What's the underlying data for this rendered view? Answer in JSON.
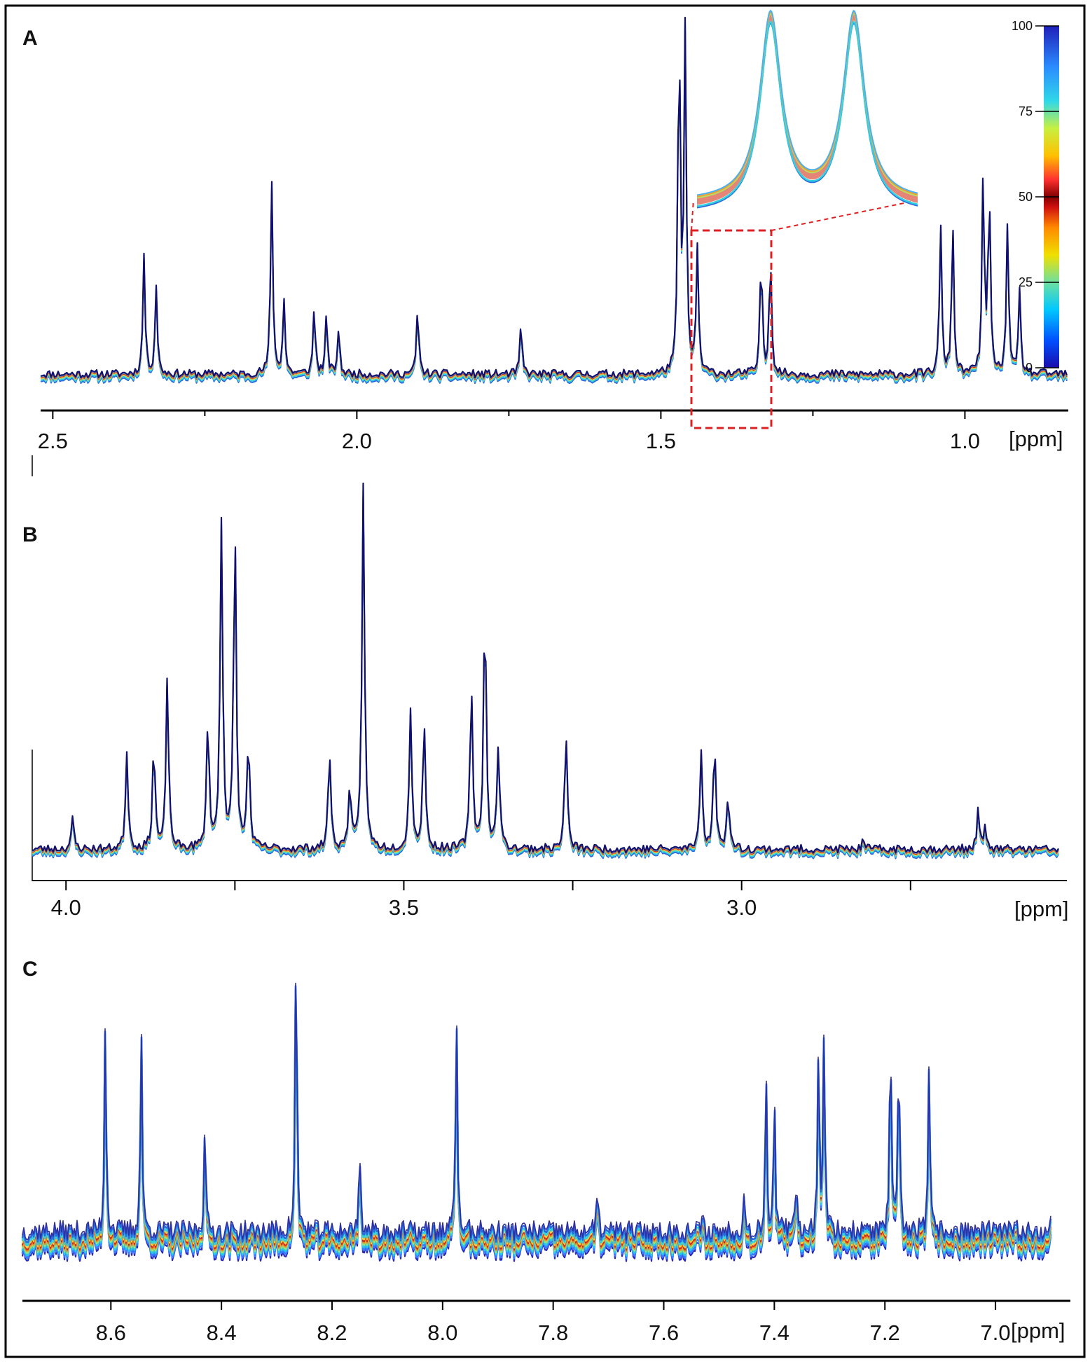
{
  "figure": {
    "panels": [
      "A",
      "B",
      "C"
    ],
    "colorbar": {
      "ticks": [
        0,
        25,
        50,
        75,
        100
      ],
      "tick_labels": [
        "0",
        "25",
        "50",
        "75",
        "100"
      ],
      "colors": [
        "#1a0dab",
        "#0050ff",
        "#00c8ff",
        "#6de0a0",
        "#f0e000",
        "#ff8a00",
        "#d01010",
        "#800000",
        "#ff3030",
        "#ffc000",
        "#c8f040",
        "#30d8e8",
        "#2a8cff",
        "#2020b8"
      ]
    },
    "zoom_box_color": "#e02020",
    "spectrum_line_color": "#10106e"
  },
  "chart_data": [
    {
      "type": "line",
      "panel": "A",
      "title": "",
      "xlabel": "[ppm]",
      "ylabel": "",
      "x_reversed": true,
      "xlim": [
        2.52,
        0.83
      ],
      "ylim": [
        0,
        100
      ],
      "x_ticks": [
        2.5,
        2.0,
        1.5,
        1.0
      ],
      "x_tick_labels": [
        "2.5",
        "2.0",
        "1.5",
        "1.0"
      ],
      "minor_ticks": [
        2.25,
        1.75,
        1.25
      ],
      "zoom_region_ppm": [
        1.38,
        1.25
      ],
      "inset": {
        "description": "zoom of doublet near 1.33 ppm",
        "peaks_ppm": [
          1.335,
          1.318
        ]
      },
      "series": [
        {
          "name": "spectra overlay (colour = sample index)",
          "baseline": 4,
          "peaks": [
            {
              "x": 2.35,
              "y": 36
            },
            {
              "x": 2.33,
              "y": 28
            },
            {
              "x": 2.14,
              "y": 56
            },
            {
              "x": 2.12,
              "y": 24
            },
            {
              "x": 2.07,
              "y": 22
            },
            {
              "x": 2.05,
              "y": 19
            },
            {
              "x": 2.03,
              "y": 16
            },
            {
              "x": 1.9,
              "y": 22
            },
            {
              "x": 1.73,
              "y": 17
            },
            {
              "x": 1.47,
              "y": 100
            },
            {
              "x": 1.46,
              "y": 100
            },
            {
              "x": 1.44,
              "y": 38
            },
            {
              "x": 1.335,
              "y": 37
            },
            {
              "x": 1.32,
              "y": 37
            },
            {
              "x": 1.04,
              "y": 44
            },
            {
              "x": 1.02,
              "y": 44
            },
            {
              "x": 0.97,
              "y": 57
            },
            {
              "x": 0.96,
              "y": 54
            },
            {
              "x": 0.93,
              "y": 45
            },
            {
              "x": 0.91,
              "y": 26
            }
          ]
        }
      ]
    },
    {
      "type": "line",
      "panel": "B",
      "title": "",
      "xlabel": "[ppm]",
      "ylabel": "",
      "x_reversed": true,
      "xlim": [
        4.05,
        2.53
      ],
      "ylim": [
        0,
        100
      ],
      "x_ticks": [
        4.0,
        3.5,
        3.0
      ],
      "x_tick_labels": [
        "4.0",
        "3.5",
        "3.0"
      ],
      "minor_ticks": [
        3.75,
        3.25,
        2.75
      ],
      "series": [
        {
          "name": "spectra overlay (colour = sample index)",
          "baseline": 3,
          "peaks": [
            {
              "x": 3.99,
              "y": 11
            },
            {
              "x": 3.91,
              "y": 29
            },
            {
              "x": 3.87,
              "y": 31
            },
            {
              "x": 3.85,
              "y": 48
            },
            {
              "x": 3.79,
              "y": 37
            },
            {
              "x": 3.77,
              "y": 90
            },
            {
              "x": 3.75,
              "y": 88
            },
            {
              "x": 3.73,
              "y": 32
            },
            {
              "x": 3.61,
              "y": 29
            },
            {
              "x": 3.58,
              "y": 20
            },
            {
              "x": 3.56,
              "y": 100
            },
            {
              "x": 3.49,
              "y": 40
            },
            {
              "x": 3.47,
              "y": 37
            },
            {
              "x": 3.4,
              "y": 46
            },
            {
              "x": 3.38,
              "y": 68
            },
            {
              "x": 3.36,
              "y": 31
            },
            {
              "x": 3.26,
              "y": 34
            },
            {
              "x": 3.06,
              "y": 29
            },
            {
              "x": 3.04,
              "y": 31
            },
            {
              "x": 3.02,
              "y": 18
            },
            {
              "x": 2.82,
              "y": 5
            },
            {
              "x": 2.65,
              "y": 13
            },
            {
              "x": 2.64,
              "y": 8
            }
          ]
        }
      ]
    },
    {
      "type": "line",
      "panel": "C",
      "title": "",
      "xlabel": "[ppm]",
      "ylabel": "",
      "x_reversed": true,
      "xlim": [
        8.76,
        6.9
      ],
      "ylim": [
        0,
        100
      ],
      "x_ticks": [
        8.6,
        8.4,
        8.2,
        8.0,
        7.8,
        7.6,
        7.4,
        7.2,
        7.0
      ],
      "x_tick_labels": [
        "8.6",
        "8.4",
        "8.2",
        "8.0",
        "7.8",
        "7.6",
        "7.4",
        "7.2",
        "7.0"
      ],
      "series": [
        {
          "name": "spectra overlay (colour = sample index)",
          "baseline": 10,
          "peaks": [
            {
              "x": 8.61,
              "y": 76
            },
            {
              "x": 8.545,
              "y": 72
            },
            {
              "x": 8.43,
              "y": 43
            },
            {
              "x": 8.265,
              "y": 100
            },
            {
              "x": 8.15,
              "y": 36
            },
            {
              "x": 7.975,
              "y": 80
            },
            {
              "x": 7.72,
              "y": 22
            },
            {
              "x": 7.53,
              "y": 14
            },
            {
              "x": 7.455,
              "y": 21
            },
            {
              "x": 7.415,
              "y": 58
            },
            {
              "x": 7.4,
              "y": 50
            },
            {
              "x": 7.36,
              "y": 27
            },
            {
              "x": 7.32,
              "y": 70
            },
            {
              "x": 7.31,
              "y": 72
            },
            {
              "x": 7.19,
              "y": 70
            },
            {
              "x": 7.175,
              "y": 67
            },
            {
              "x": 7.12,
              "y": 60
            },
            {
              "x": 6.89,
              "y": 65
            },
            {
              "x": 6.88,
              "y": 58
            }
          ]
        }
      ]
    }
  ]
}
